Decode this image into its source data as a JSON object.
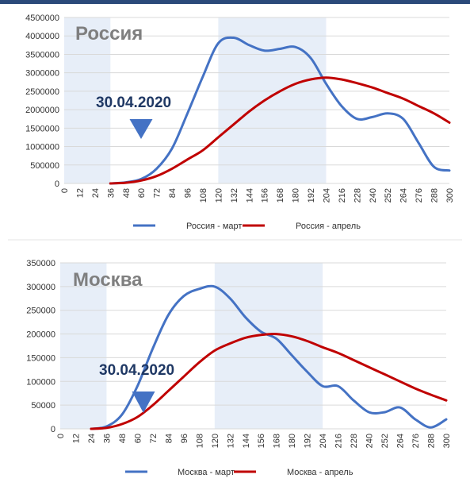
{
  "chart_data": [
    {
      "type": "line",
      "title": "Россия",
      "annotation": "30.04.2020",
      "x_ticks": [
        0,
        12,
        24,
        36,
        48,
        60,
        72,
        84,
        96,
        108,
        120,
        132,
        144,
        156,
        168,
        180,
        192,
        204,
        216,
        228,
        240,
        252,
        264,
        276,
        288,
        300
      ],
      "xlim": [
        0,
        300
      ],
      "y_ticks": [
        "0",
        "500000",
        "1000000",
        "1500000",
        "2000000",
        "2500000",
        "3000000",
        "3500000",
        "4000000",
        "4500000"
      ],
      "ylim": [
        0,
        4500000
      ],
      "shaded_ranges": [
        [
          0,
          36
        ],
        [
          120,
          204
        ]
      ],
      "annotation_arrow_x": 60,
      "legend_position": "bottom",
      "series": [
        {
          "name": "Россия - март",
          "color": "#4472c4",
          "x": [
            36,
            48,
            60,
            72,
            84,
            96,
            108,
            120,
            132,
            144,
            156,
            168,
            180,
            192,
            204,
            216,
            228,
            240,
            252,
            264,
            276,
            288,
            300
          ],
          "y": [
            0,
            30000,
            120000,
            400000,
            950000,
            1900000,
            2900000,
            3800000,
            3950000,
            3750000,
            3600000,
            3650000,
            3700000,
            3400000,
            2700000,
            2100000,
            1750000,
            1800000,
            1900000,
            1750000,
            1100000,
            450000,
            350000
          ]
        },
        {
          "name": "Россия - апрель",
          "color": "#c00000",
          "x": [
            36,
            48,
            60,
            72,
            84,
            96,
            108,
            120,
            132,
            144,
            156,
            168,
            180,
            192,
            204,
            216,
            228,
            240,
            252,
            264,
            276,
            288,
            300
          ],
          "y": [
            0,
            20000,
            80000,
            200000,
            400000,
            650000,
            900000,
            1250000,
            1600000,
            1950000,
            2250000,
            2500000,
            2700000,
            2820000,
            2870000,
            2820000,
            2720000,
            2600000,
            2450000,
            2300000,
            2100000,
            1900000,
            1650000
          ]
        }
      ]
    },
    {
      "type": "line",
      "title": "Москва",
      "annotation": "30.04.2020",
      "x_ticks": [
        0,
        12,
        24,
        36,
        48,
        60,
        72,
        84,
        96,
        108,
        120,
        132,
        144,
        156,
        168,
        180,
        192,
        204,
        216,
        228,
        240,
        252,
        264,
        276,
        288,
        300
      ],
      "xlim": [
        0,
        300
      ],
      "y_ticks": [
        "0",
        "50000",
        "100000",
        "150000",
        "200000",
        "250000",
        "300000",
        "350000"
      ],
      "ylim": [
        0,
        350000
      ],
      "shaded_ranges": [
        [
          0,
          36
        ],
        [
          120,
          204
        ]
      ],
      "annotation_arrow_x": 60,
      "legend_position": "bottom",
      "series": [
        {
          "name": "Москва - март",
          "color": "#4472c4",
          "x": [
            24,
            36,
            48,
            60,
            72,
            84,
            96,
            108,
            120,
            132,
            144,
            156,
            168,
            180,
            192,
            204,
            216,
            228,
            240,
            252,
            264,
            276,
            288,
            300
          ],
          "y": [
            0,
            5000,
            30000,
            90000,
            170000,
            240000,
            280000,
            295000,
            300000,
            275000,
            235000,
            205000,
            190000,
            155000,
            120000,
            90000,
            90000,
            60000,
            35000,
            35000,
            45000,
            20000,
            3000,
            20000
          ]
        },
        {
          "name": "Москва - апрель",
          "color": "#c00000",
          "x": [
            24,
            36,
            48,
            60,
            72,
            84,
            96,
            108,
            120,
            132,
            144,
            156,
            168,
            180,
            192,
            204,
            216,
            228,
            240,
            252,
            264,
            276,
            288,
            300
          ],
          "y": [
            0,
            2000,
            10000,
            25000,
            50000,
            80000,
            110000,
            140000,
            165000,
            180000,
            192000,
            198000,
            200000,
            195000,
            185000,
            172000,
            160000,
            145000,
            130000,
            115000,
            100000,
            85000,
            72000,
            60000
          ]
        }
      ]
    }
  ]
}
